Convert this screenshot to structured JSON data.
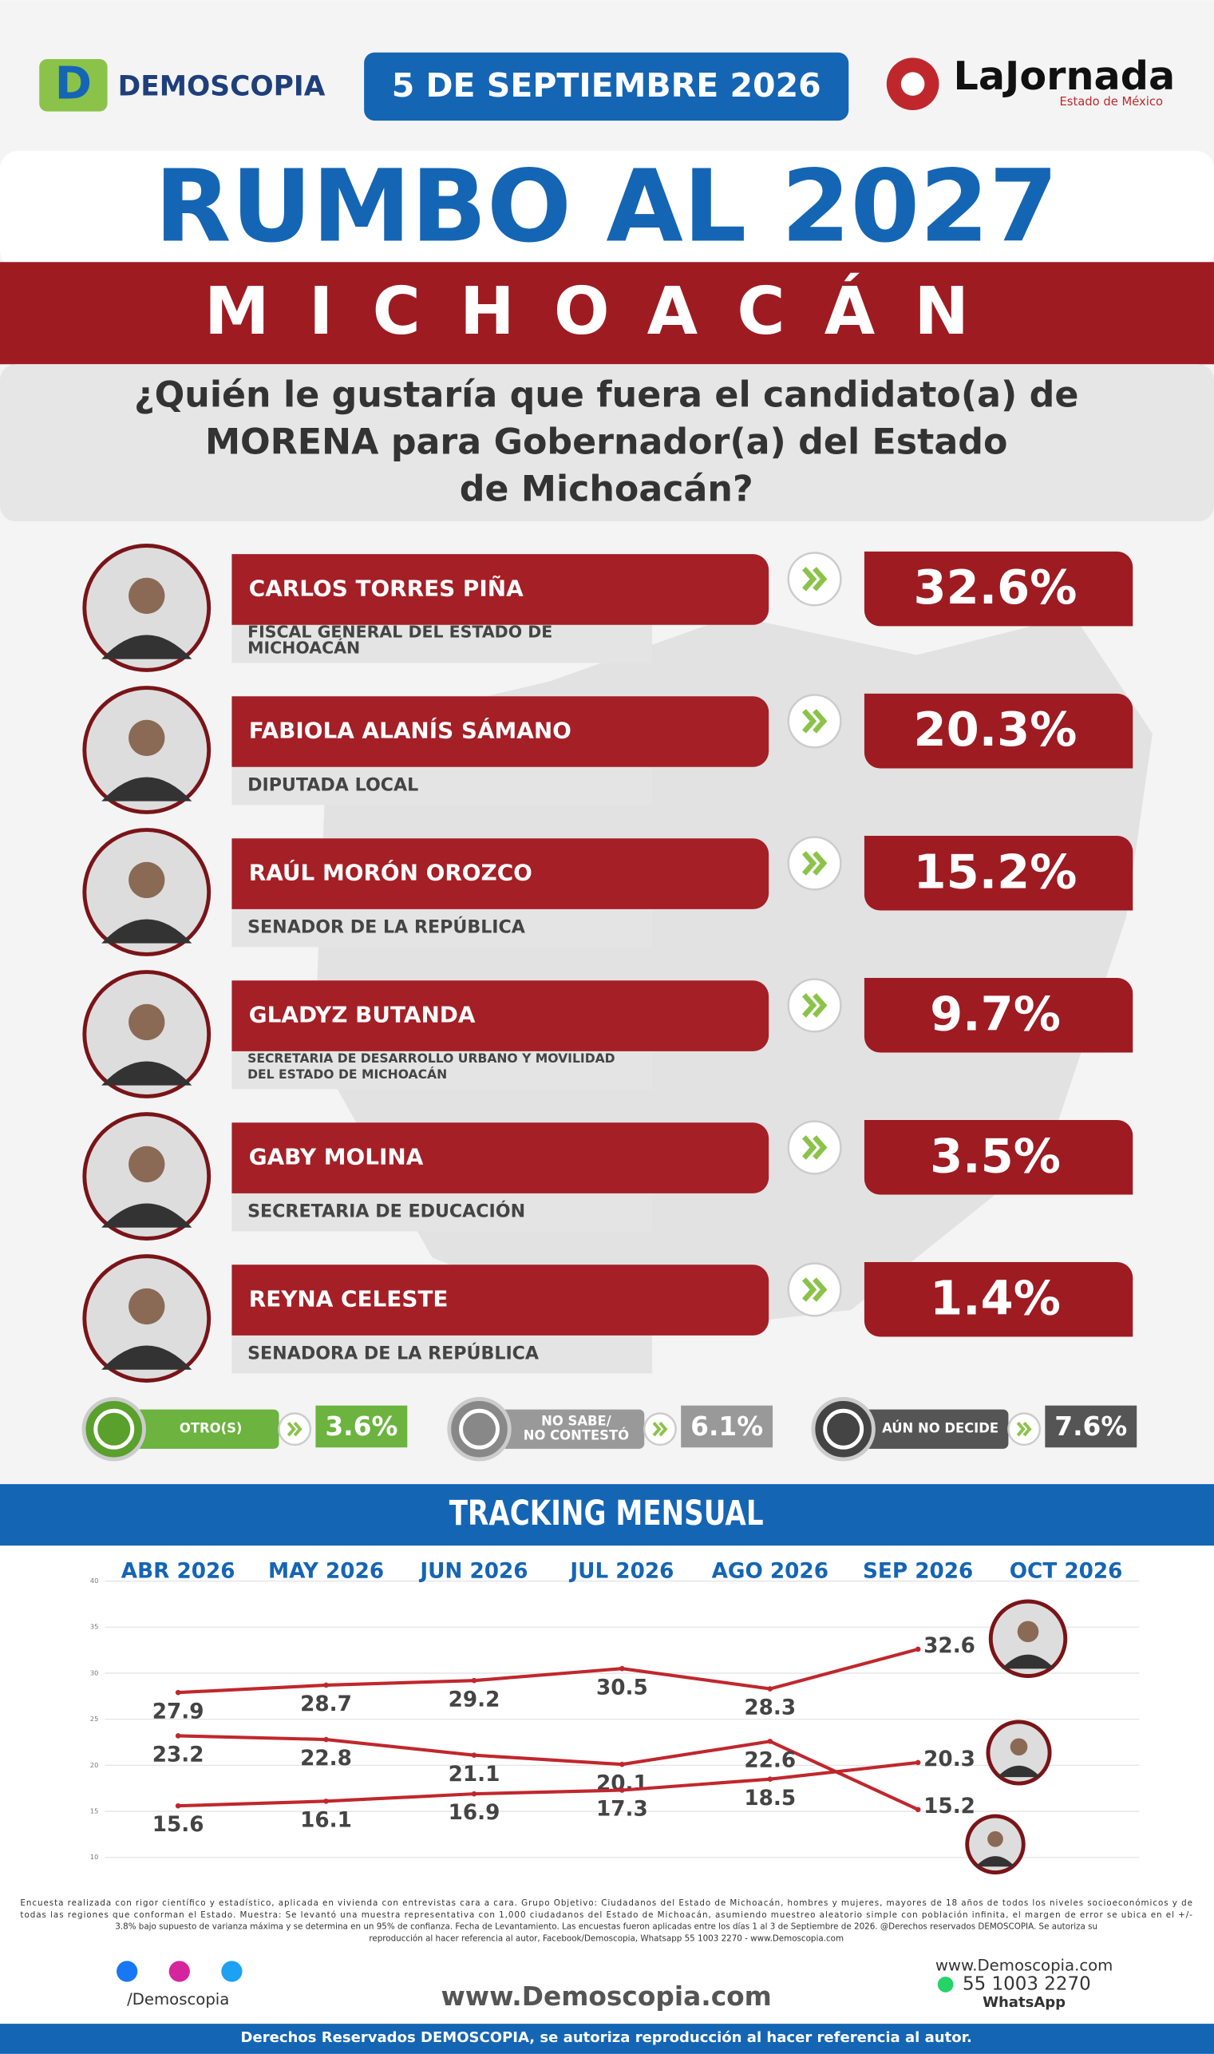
{
  "header": {
    "brand": "DEMOSCOPIA",
    "date": "5 DE SEPTIEMBRE 2026",
    "partner": "LaJornada",
    "partner_sub": "Estado de México"
  },
  "title": "RUMBO AL 2027",
  "subtitle": "MICHOACÁN",
  "question": [
    "¿Quién le gustaría que fuera el candidato(a) de",
    "MORENA para Gobernador(a) del Estado",
    "de Michoacán?"
  ],
  "candidates": [
    {
      "name": "CARLOS TORRES PIÑA",
      "role": [
        "FISCAL GENERAL DEL ESTADO DE",
        "MICHOACÁN"
      ],
      "result": "32.6%"
    },
    {
      "name": "FABIOLA ALANÍS SÁMANO",
      "role": [
        "DIPUTADA LOCAL"
      ],
      "result": "20.3%"
    },
    {
      "name": "RAÚL MORÓN OROZCO",
      "role": [
        "SENADOR DE LA REPÚBLICA"
      ],
      "result": "15.2%"
    },
    {
      "name": "GLADYZ BUTANDA",
      "role": [
        "SECRETARIA DE DESARROLLO URBANO Y MOVILIDAD",
        "DEL ESTADO DE MICHOACÁN"
      ],
      "result": "9.7%"
    },
    {
      "name": "GABY MOLINA",
      "role": [
        "SECRETARIA DE EDUCACIÓN"
      ],
      "result": "3.5%"
    },
    {
      "name": "REYNA CELESTE",
      "role": [
        "SENADORA DE LA REPÚBLICA"
      ],
      "result": "1.4%"
    }
  ],
  "others": [
    {
      "label": [
        "OTRO(S)"
      ],
      "result": "3.6%"
    },
    {
      "label": [
        "NO SABE/",
        "NO CONTESTÓ"
      ],
      "result": "6.1%"
    },
    {
      "label": [
        "AÚN NO DECIDE"
      ],
      "result": "7.6%"
    }
  ],
  "chart_data": {
    "type": "line",
    "title": "TRACKING MENSUAL",
    "categories": [
      "ABR 2026",
      "MAY 2026",
      "JUN 2026",
      "JUL 2026",
      "AGO 2026",
      "SEP 2026",
      "OCT 2026"
    ],
    "series": [
      {
        "color": "#c0272d",
        "values": [
          27.9,
          28.7,
          29.2,
          30.5,
          28.3,
          32.6,
          null
        ]
      },
      {
        "color": "#c0272d",
        "values": [
          23.2,
          22.8,
          21.1,
          20.1,
          22.6,
          15.2,
          null
        ]
      },
      {
        "color": "#c0272d",
        "values": [
          15.6,
          16.1,
          16.9,
          17.3,
          18.5,
          20.3,
          null
        ]
      }
    ],
    "ylim": [
      10,
      40
    ],
    "yticks": [
      10,
      15,
      20,
      25,
      30,
      35,
      40
    ],
    "grid": true
  },
  "footer": {
    "note": [
      "Encuesta realizada con rigor científico y estadístico, aplicada en vivienda con entrevistas cara a cara. Grupo Objetivo: Ciudadanos del Estado de Michoacán, hombres y mujeres, mayores de 18 años de todos los niveles socioeconómicos y de",
      "todas las regiones que conforman el Estado. Muestra: Se levantó una muestra representativa con 1,000 ciudadanos del Estado de Michoacán, asumiendo muestreo aleatorio simple con población infinita, el margen de error se ubica en el +/-",
      "3.8% bajo supuesto de varianza máxima y se determina en un 95% de confianza. Fecha de Levantamiento. Las encuestas fueron aplicadas entre los días 1 al 3 de Septiembre de 2026. @Derechos reservados DEMOSCOPIA. Se autoriza su",
      "reproducción al hacer referencia al autor, Facebook/Demoscopia, Whatsapp 55 1003 2270 - www.Demoscopia.com"
    ],
    "social": "/Demoscopia",
    "site": "www.Demoscopia.com",
    "site_small": "www.Demoscopia.com",
    "phone": "55 1003 2270",
    "phone_label": "WhatsApp",
    "rights": "Derechos Reservados DEMOSCOPIA, se autoriza reproducción al hacer referencia al autor."
  }
}
